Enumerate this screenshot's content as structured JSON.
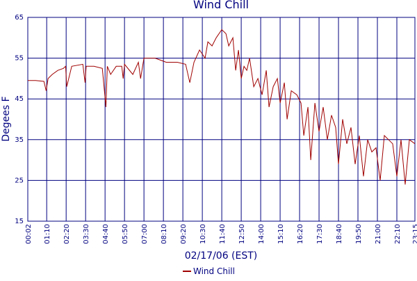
{
  "chart_data": {
    "type": "line",
    "title": "Wind Chill",
    "x_label": "02/17/06 (EST)",
    "y_label": "Degees F",
    "xlim": [
      2,
      1395
    ],
    "xticks": [
      {
        "value": 2,
        "label": "00:02"
      },
      {
        "value": 70,
        "label": "01:10"
      },
      {
        "value": 140,
        "label": "02:20"
      },
      {
        "value": 210,
        "label": "03:30"
      },
      {
        "value": 280,
        "label": "04:40"
      },
      {
        "value": 350,
        "label": "05:50"
      },
      {
        "value": 420,
        "label": "07:00"
      },
      {
        "value": 490,
        "label": "08:10"
      },
      {
        "value": 560,
        "label": "09:20"
      },
      {
        "value": 630,
        "label": "10:30"
      },
      {
        "value": 700,
        "label": "11:40"
      },
      {
        "value": 770,
        "label": "12:50"
      },
      {
        "value": 840,
        "label": "14:00"
      },
      {
        "value": 910,
        "label": "15:10"
      },
      {
        "value": 980,
        "label": "16:20"
      },
      {
        "value": 1050,
        "label": "17:30"
      },
      {
        "value": 1120,
        "label": "18:40"
      },
      {
        "value": 1190,
        "label": "19:50"
      },
      {
        "value": 1260,
        "label": "21:00"
      },
      {
        "value": 1330,
        "label": "22:10"
      },
      {
        "value": 1395,
        "label": "23:15"
      }
    ],
    "ylim": [
      15,
      65
    ],
    "yticks": [
      15,
      25,
      35,
      45,
      55,
      65
    ],
    "grid": true,
    "x": [
      2,
      30,
      60,
      68,
      75,
      90,
      110,
      130,
      138,
      142,
      160,
      200,
      208,
      212,
      240,
      270,
      283,
      288,
      300,
      320,
      340,
      345,
      350,
      380,
      400,
      408,
      420,
      460,
      480,
      500,
      540,
      570,
      585,
      600,
      620,
      640,
      650,
      665,
      680,
      700,
      715,
      725,
      740,
      750,
      760,
      770,
      780,
      790,
      800,
      815,
      830,
      845,
      860,
      870,
      885,
      900,
      910,
      925,
      935,
      950,
      970,
      985,
      995,
      1010,
      1020,
      1035,
      1050,
      1065,
      1080,
      1095,
      1110,
      1120,
      1135,
      1150,
      1165,
      1180,
      1195,
      1210,
      1225,
      1240,
      1255,
      1270,
      1285,
      1300,
      1315,
      1330,
      1345,
      1360,
      1375,
      1395
    ],
    "series": [
      {
        "name": "Wind Chill",
        "color": "#a00000",
        "values": [
          49.5,
          49.5,
          49.3,
          47,
          50,
          51,
          52,
          52.5,
          53,
          48,
          53,
          53.5,
          49,
          53,
          53,
          52.5,
          43,
          53,
          51,
          53,
          53,
          50,
          53.5,
          51,
          54,
          50,
          55,
          55,
          54.5,
          54,
          54,
          53.5,
          49,
          54,
          57,
          55,
          59,
          58,
          60,
          62,
          61,
          58,
          60,
          52,
          57,
          50,
          53,
          52,
          55,
          48,
          50,
          46,
          52,
          43,
          48,
          50,
          44,
          49,
          40,
          47,
          46,
          44,
          36,
          43,
          30,
          44,
          37,
          43,
          35,
          41,
          38,
          29,
          40,
          34,
          38,
          29,
          36,
          26,
          35,
          32,
          33,
          25,
          36,
          35,
          34,
          26,
          35,
          24,
          35,
          34
        ]
      }
    ]
  }
}
